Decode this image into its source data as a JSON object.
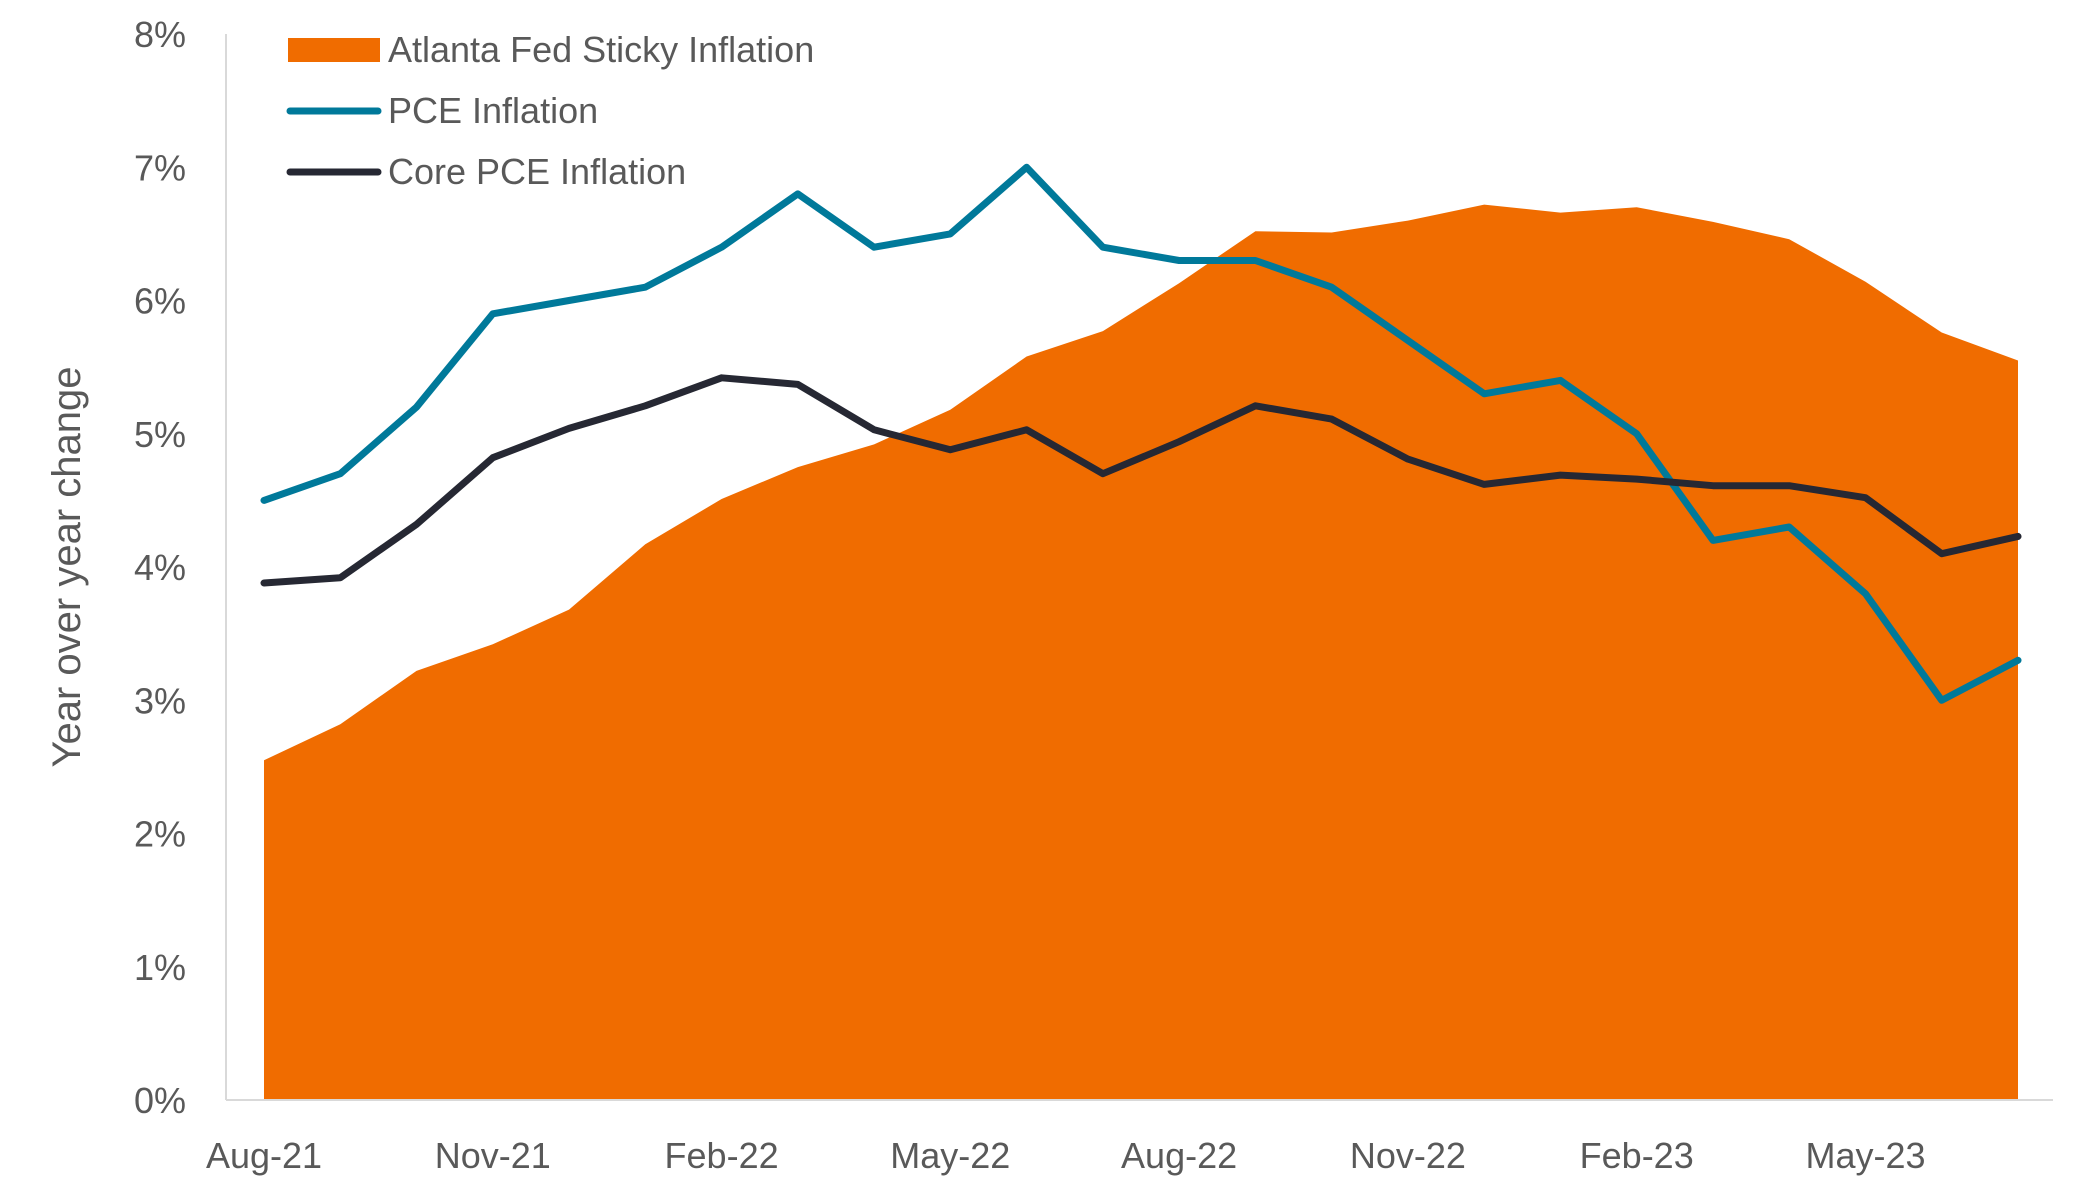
{
  "chart_data": {
    "type": "line",
    "ylabel": "Year over year change",
    "ylim": [
      0,
      8
    ],
    "yticks": [
      "0%",
      "1%",
      "2%",
      "3%",
      "4%",
      "5%",
      "6%",
      "7%",
      "8%"
    ],
    "x": [
      "Aug-21",
      "Sep-21",
      "Oct-21",
      "Nov-21",
      "Dec-21",
      "Jan-22",
      "Feb-22",
      "Mar-22",
      "Apr-22",
      "May-22",
      "Jun-22",
      "Jul-22",
      "Aug-22",
      "Sep-22",
      "Oct-22",
      "Nov-22",
      "Dec-22",
      "Jan-23",
      "Feb-23",
      "Mar-23",
      "Apr-23",
      "May-23",
      "Jun-23",
      "Jul-23"
    ],
    "xtick_labels": [
      "Aug-21",
      "Nov-21",
      "Feb-22",
      "May-22",
      "Aug-22",
      "Nov-22",
      "Feb-23",
      "May-23"
    ],
    "grid": false,
    "legend_position": "top-left",
    "series": [
      {
        "name": "Atlanta Fed Sticky Inflation",
        "type": "area",
        "color": "#F06C00",
        "values": [
          2.55,
          2.82,
          3.22,
          3.42,
          3.68,
          4.17,
          4.51,
          4.75,
          4.92,
          5.18,
          5.58,
          5.77,
          6.13,
          6.52,
          6.51,
          6.6,
          6.72,
          6.66,
          6.7,
          6.59,
          6.46,
          6.14,
          5.76,
          5.55
        ]
      },
      {
        "name": "PCE Inflation",
        "type": "line",
        "color": "#00799A",
        "values": [
          4.5,
          4.7,
          5.2,
          5.9,
          6.0,
          6.1,
          6.4,
          6.8,
          6.4,
          6.5,
          7.0,
          6.4,
          6.3,
          6.3,
          6.1,
          5.7,
          5.3,
          5.4,
          5.0,
          4.2,
          4.3,
          3.8,
          3.0,
          3.3
        ]
      },
      {
        "name": "Core PCE Inflation",
        "type": "line",
        "color": "#262833",
        "values": [
          3.88,
          3.92,
          4.32,
          4.82,
          5.04,
          5.21,
          5.42,
          5.37,
          5.03,
          4.88,
          5.03,
          4.7,
          4.94,
          5.21,
          5.11,
          4.81,
          4.62,
          4.69,
          4.66,
          4.61,
          4.61,
          4.52,
          4.1,
          4.23
        ]
      }
    ]
  }
}
